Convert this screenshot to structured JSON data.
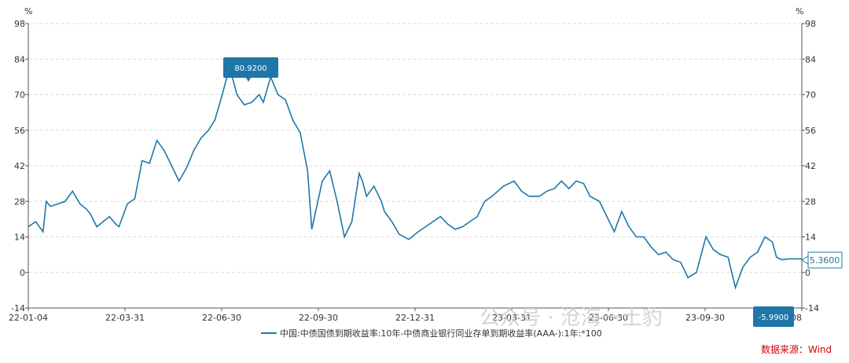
{
  "chart_data": {
    "type": "line",
    "y_unit_left": "%",
    "y_unit_right": "%",
    "ylim": [
      -14,
      98
    ],
    "y_ticks": [
      -14,
      0,
      14,
      28,
      42,
      56,
      70,
      84,
      98
    ],
    "x_tick_labels": [
      "22-01-04",
      "22-03-31",
      "22-06-30",
      "22-09-30",
      "22-12-31",
      "23-03-31",
      "23-06-30",
      "23-09-30",
      "08"
    ],
    "series": [
      {
        "name": "中国:中债国债到期收益率:10年-中债商业银行同业存单到期收益率(AAA-):1年:*100",
        "color": "#1f77a8",
        "x": [
          "22-01-04",
          "22-01-11",
          "22-01-18",
          "22-01-21",
          "22-01-25",
          "22-02-08",
          "22-02-15",
          "22-02-22",
          "22-02-28",
          "22-03-04",
          "22-03-10",
          "22-03-16",
          "22-03-22",
          "22-03-28",
          "22-03-31",
          "22-04-08",
          "22-04-15",
          "22-04-22",
          "22-04-29",
          "22-05-06",
          "22-05-13",
          "22-05-20",
          "22-05-27",
          "22-06-03",
          "22-06-10",
          "22-06-17",
          "22-06-24",
          "22-06-30",
          "22-07-07",
          "22-07-14",
          "22-07-21",
          "22-07-28",
          "22-08-04",
          "22-08-11",
          "22-08-15",
          "22-08-22",
          "22-08-29",
          "22-09-05",
          "22-09-12",
          "22-09-19",
          "22-09-26",
          "22-09-30",
          "22-10-10",
          "22-10-17",
          "22-10-24",
          "22-10-31",
          "22-11-07",
          "22-11-14",
          "22-11-17",
          "22-11-21",
          "22-11-28",
          "22-12-05",
          "22-12-08",
          "22-12-15",
          "22-12-22",
          "22-12-31",
          "23-01-09",
          "23-01-16",
          "23-01-30",
          "23-02-06",
          "23-02-13",
          "23-02-20",
          "23-02-27",
          "23-03-06",
          "23-03-13",
          "23-03-20",
          "23-03-31",
          "23-04-10",
          "23-04-17",
          "23-04-24",
          "23-05-04",
          "23-05-11",
          "23-05-18",
          "23-05-25",
          "23-06-01",
          "23-06-08",
          "23-06-15",
          "23-06-21",
          "23-06-30",
          "23-07-07",
          "23-07-14",
          "23-07-21",
          "23-07-28",
          "23-08-04",
          "23-08-11",
          "23-08-18",
          "23-08-25",
          "23-09-01",
          "23-09-08",
          "23-09-15",
          "23-09-22",
          "23-09-30",
          "23-10-09",
          "23-10-16",
          "23-10-23",
          "23-10-30",
          "23-11-06",
          "23-11-13",
          "23-11-20",
          "23-11-27",
          "23-12-04",
          "23-12-11",
          "23-12-15",
          "23-12-20",
          "23-12-27",
          "24-01-08"
        ],
        "y": [
          18,
          20,
          16,
          28,
          26,
          28,
          32,
          27,
          25,
          23,
          18,
          20,
          22,
          19,
          18,
          27,
          29,
          44,
          43,
          52,
          48,
          42,
          36,
          41,
          48,
          53,
          56,
          60,
          70,
          80.92,
          70,
          66,
          67,
          70,
          67,
          77,
          70,
          68,
          60,
          55,
          40,
          17,
          36,
          40,
          28,
          14,
          20,
          39,
          36,
          30,
          34,
          28,
          24,
          20,
          15,
          13,
          16,
          18,
          22,
          19,
          17,
          18,
          20,
          22,
          28,
          30,
          34,
          36,
          32,
          30,
          30,
          32,
          33,
          36,
          33,
          36,
          35,
          30,
          28,
          22,
          16,
          24,
          18,
          14,
          14,
          10,
          7,
          8,
          5,
          4,
          -2,
          0,
          14,
          9,
          7,
          6,
          -5.99,
          2,
          6,
          8,
          14,
          12,
          6,
          5,
          5.36,
          5.36
        ]
      }
    ],
    "annotations": [
      {
        "label": "80.9200",
        "value": 80.92
      },
      {
        "label": "-5.9900",
        "value": -5.99
      },
      {
        "label": "5.3600",
        "value": 5.36
      }
    ],
    "legend_position": "bottom",
    "grid": true
  },
  "source_label": "数据来源：Wind",
  "watermark": "公众号 · 沧海一土豹"
}
